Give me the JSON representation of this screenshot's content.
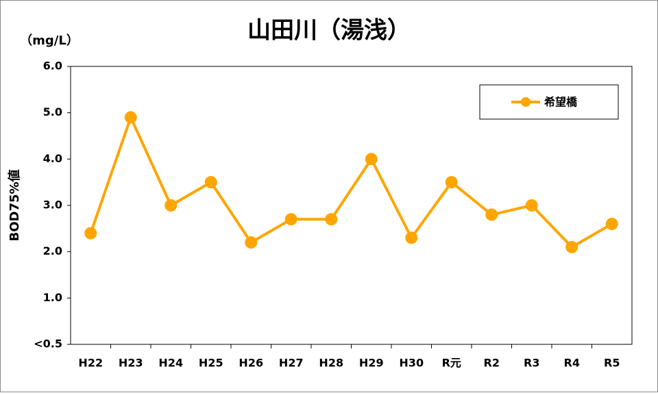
{
  "chart_data": {
    "type": "line",
    "title": "山田川（湯浅）",
    "unit_label": "（mg/L）",
    "y_label": "BOD75%値",
    "categories": [
      "H22",
      "H23",
      "H24",
      "H25",
      "H26",
      "H27",
      "H28",
      "H29",
      "H30",
      "R元",
      "R2",
      "R3",
      "R4",
      "R5"
    ],
    "series": [
      {
        "name": "希望橋",
        "color": "#ffa500",
        "values": [
          2.4,
          4.9,
          3.0,
          3.5,
          2.2,
          2.7,
          2.7,
          4.0,
          2.3,
          3.5,
          2.8,
          3.0,
          2.1,
          2.6
        ]
      }
    ],
    "ylim": [
      0,
      6
    ],
    "yticks": [
      {
        "value": 0,
        "label": "<0.5"
      },
      {
        "value": 1,
        "label": "1.0"
      },
      {
        "value": 2,
        "label": "2.0"
      },
      {
        "value": 3,
        "label": "3.0"
      },
      {
        "value": 4,
        "label": "4.0"
      },
      {
        "value": 5,
        "label": "5.0"
      },
      {
        "value": 6,
        "label": "6.0"
      }
    ],
    "grid": false,
    "legend": "upper right"
  }
}
